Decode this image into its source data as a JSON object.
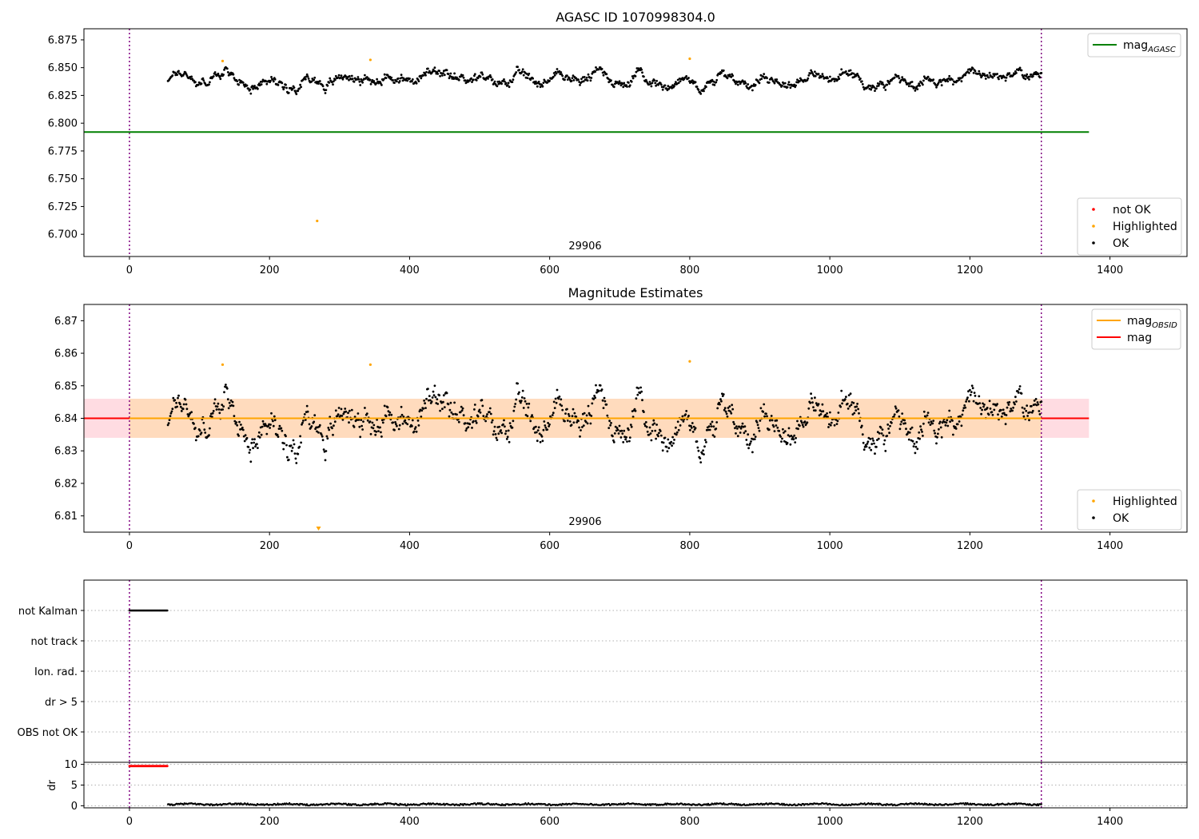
{
  "colors": {
    "ok": "#000000",
    "not_ok": "#ff0000",
    "highlighted": "#ffa500",
    "agasc_line": "#008000",
    "mag_line": "#ff0000",
    "mag_obsid_line": "#ffa500",
    "band_outer": "#ffc0cb",
    "band_inner": "#ffdab9",
    "marker_line": "#800080"
  },
  "chart_data": [
    {
      "type": "scatter",
      "title": "AGASC ID 1070998304.0",
      "obsid_label": "29906",
      "xlim": [
        -65,
        1510
      ],
      "ylim": [
        6.68,
        6.885
      ],
      "x_ticks": [
        0,
        200,
        400,
        600,
        800,
        1000,
        1200,
        1400
      ],
      "y_ticks": [
        6.7,
        6.725,
        6.75,
        6.775,
        6.8,
        6.825,
        6.85,
        6.875
      ],
      "y_tick_labels": [
        "6.700",
        "6.725",
        "6.750",
        "6.775",
        "6.800",
        "6.825",
        "6.850",
        "6.875"
      ],
      "grid": false,
      "vertical_markers": [
        0,
        1302
      ],
      "lines": [
        {
          "name": "mag_AGASC",
          "y": 6.792,
          "x": [
            -65,
            1370
          ],
          "color": "#008000"
        }
      ],
      "series": [
        {
          "name": "OK",
          "x_range": [
            55,
            1302
          ],
          "y_mean": 6.84,
          "y_spread": 0.014,
          "color": "#000000"
        },
        {
          "name": "Highlighted",
          "x": [
            133,
            268,
            344,
            800
          ],
          "y": [
            6.856,
            6.712,
            6.857,
            6.858
          ],
          "color": "#ffa500"
        },
        {
          "name": "not OK",
          "x": [],
          "y": [],
          "color": "#ff0000"
        }
      ],
      "legends": [
        {
          "placement": "top-right",
          "entries": [
            {
              "label": "mag",
              "subscript": "AGASC",
              "kind": "line",
              "color": "#008000"
            }
          ]
        },
        {
          "placement": "bottom-right",
          "entries": [
            {
              "label": "not OK",
              "kind": "dot",
              "color": "#ff0000"
            },
            {
              "label": "Highlighted",
              "kind": "dot",
              "color": "#ffa500"
            },
            {
              "label": "OK",
              "kind": "dot",
              "color": "#000000"
            }
          ]
        }
      ]
    },
    {
      "type": "scatter",
      "title": "Magnitude Estimates",
      "obsid_label": "29906",
      "xlim": [
        -65,
        1510
      ],
      "ylim": [
        6.805,
        6.875
      ],
      "x_ticks": [
        0,
        200,
        400,
        600,
        800,
        1000,
        1200,
        1400
      ],
      "y_ticks": [
        6.81,
        6.82,
        6.83,
        6.84,
        6.85,
        6.86,
        6.87
      ],
      "y_tick_labels": [
        "6.81",
        "6.82",
        "6.83",
        "6.84",
        "6.85",
        "6.86",
        "6.87"
      ],
      "grid": false,
      "vertical_markers": [
        0,
        1302
      ],
      "bands": [
        {
          "y_low": 6.834,
          "y_high": 6.846,
          "x": [
            -65,
            1370
          ],
          "color": "#ffc0cb"
        },
        {
          "y_low": 6.834,
          "y_high": 6.846,
          "x": [
            0,
            1302
          ],
          "color": "#ffdab9"
        }
      ],
      "lines": [
        {
          "name": "mag",
          "y": 6.84,
          "x": [
            -65,
            1370
          ],
          "color": "#ff0000"
        },
        {
          "name": "mag_OBSID",
          "y": 6.84,
          "x": [
            0,
            1302
          ],
          "color": "#ffa500"
        }
      ],
      "series": [
        {
          "name": "OK",
          "x_range": [
            55,
            1302
          ],
          "y_mean": 6.84,
          "y_spread": 0.014,
          "color": "#000000"
        },
        {
          "name": "Highlighted",
          "x": [
            133,
            344,
            800
          ],
          "y": [
            6.8565,
            6.8565,
            6.8575
          ],
          "color": "#ffa500"
        }
      ],
      "out_of_range_markers": [
        {
          "x": 270,
          "direction": "down",
          "color": "#ffa500"
        }
      ],
      "legends": [
        {
          "placement": "top-right",
          "entries": [
            {
              "label": "mag",
              "subscript": "OBSID",
              "kind": "line",
              "color": "#ffa500"
            },
            {
              "label": "mag",
              "kind": "line",
              "color": "#ff0000"
            }
          ]
        },
        {
          "placement": "bottom-right",
          "entries": [
            {
              "label": "Highlighted",
              "kind": "dot",
              "color": "#ffa500"
            },
            {
              "label": "OK",
              "kind": "dot",
              "color": "#000000"
            }
          ]
        }
      ]
    },
    {
      "type": "scatter",
      "title": "",
      "xlim": [
        -65,
        1510
      ],
      "categories": [
        "not Kalman",
        "not track",
        "Ion. rad.",
        "dr > 5",
        "OBS not OK"
      ],
      "grid": true,
      "vertical_markers": [
        0,
        1302
      ],
      "series": [
        {
          "name": "not Kalman",
          "x_range": [
            0,
            55
          ],
          "category": "not Kalman",
          "color": "#000000"
        }
      ]
    },
    {
      "type": "scatter",
      "title": "",
      "ylabel": "dr",
      "xlim": [
        -65,
        1510
      ],
      "ylim": [
        -0.5,
        10.5
      ],
      "x_ticks": [
        0,
        200,
        400,
        600,
        800,
        1000,
        1200,
        1400
      ],
      "y_ticks": [
        0,
        5,
        10
      ],
      "y_tick_labels": [
        "0",
        "5",
        "10"
      ],
      "grid": true,
      "vertical_markers": [
        0,
        1302
      ],
      "series": [
        {
          "name": "dr (clipped)",
          "x_range": [
            0,
            55
          ],
          "y": 9.6,
          "color": "#ff0000"
        },
        {
          "name": "dr",
          "x_range": [
            55,
            1302
          ],
          "y_mean": 0.35,
          "y_spread": 0.35,
          "color": "#000000"
        }
      ]
    }
  ]
}
